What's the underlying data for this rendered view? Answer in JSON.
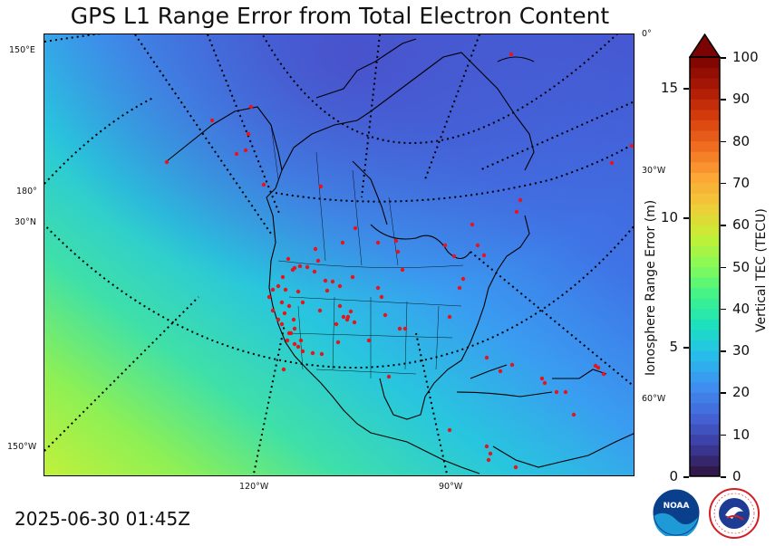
{
  "title": "GPS L1 Range Error from Total Electron Content",
  "timestamp": "2025-06-30 01:45Z",
  "map": {
    "graticule_labels": {
      "left": [
        "150°E",
        "180°",
        "30°N",
        "150°W"
      ],
      "right": [
        "0°",
        "30°W",
        "60°W"
      ],
      "bottom": [
        "120°W",
        "90°W"
      ]
    },
    "station_marker_color": "#e8141c",
    "background_colors": {
      "high_latitude": "#4a5fd6",
      "mid": "#3fa0f0",
      "low_latitude": "#b8f03c"
    }
  },
  "colorbar": {
    "tec_label": "Vertical TEC (TECU)",
    "tec_ticks": [
      "0",
      "10",
      "20",
      "30",
      "40",
      "50",
      "60",
      "70",
      "80",
      "90",
      "100"
    ],
    "range_label": "Ionosphere Range Error (m)",
    "range_ticks": [
      "0",
      "5",
      "10",
      "15"
    ],
    "extend": "max",
    "colormap": "turbo"
  },
  "logos": {
    "noaa_text": "NOAA",
    "nws_text": "NATIONAL WEATHER SERVICE"
  }
}
